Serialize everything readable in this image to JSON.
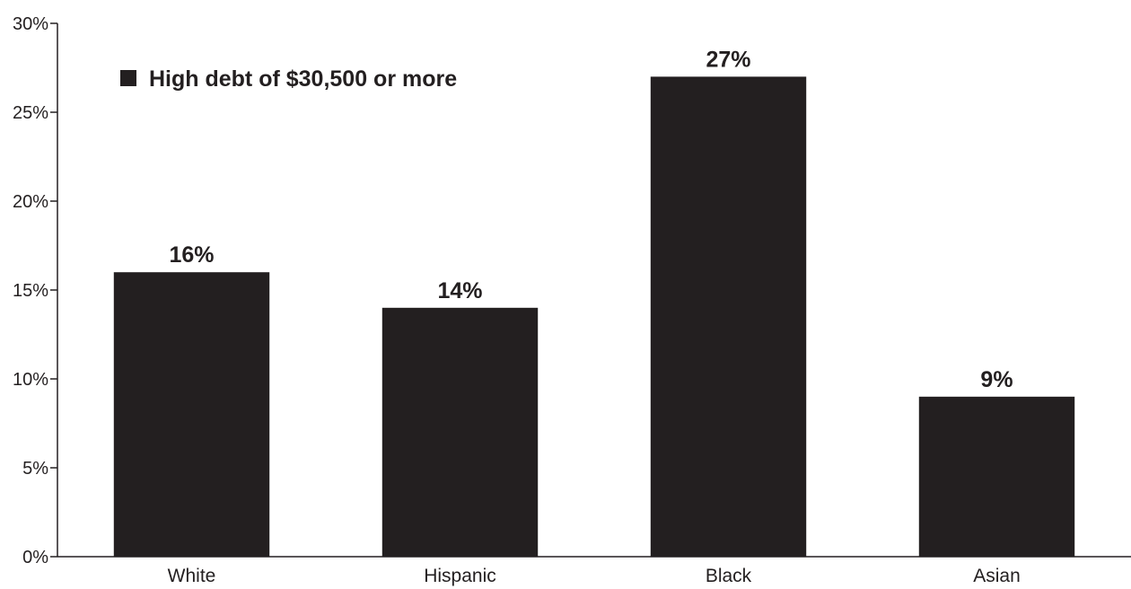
{
  "chart_data": {
    "type": "bar",
    "categories": [
      "White",
      "Hispanic",
      "Black",
      "Asian"
    ],
    "series": [
      {
        "name": "High debt of $30,500 or more",
        "values": [
          16,
          14,
          27,
          9
        ],
        "labels": [
          "16%",
          "14%",
          "27%",
          "9%"
        ]
      }
    ],
    "ylim": [
      0,
      30
    ],
    "yticks": [
      0,
      5,
      10,
      15,
      20,
      25,
      30
    ],
    "ytick_labels": [
      "0%",
      "5%",
      "10%",
      "15%",
      "20%",
      "25%",
      "30%"
    ],
    "title": "",
    "xlabel": "",
    "ylabel": "",
    "grid": false,
    "legend_position": "top-left",
    "bar_color": "#231f20",
    "axis_color": "#231f20",
    "text_color": "#231f20"
  }
}
